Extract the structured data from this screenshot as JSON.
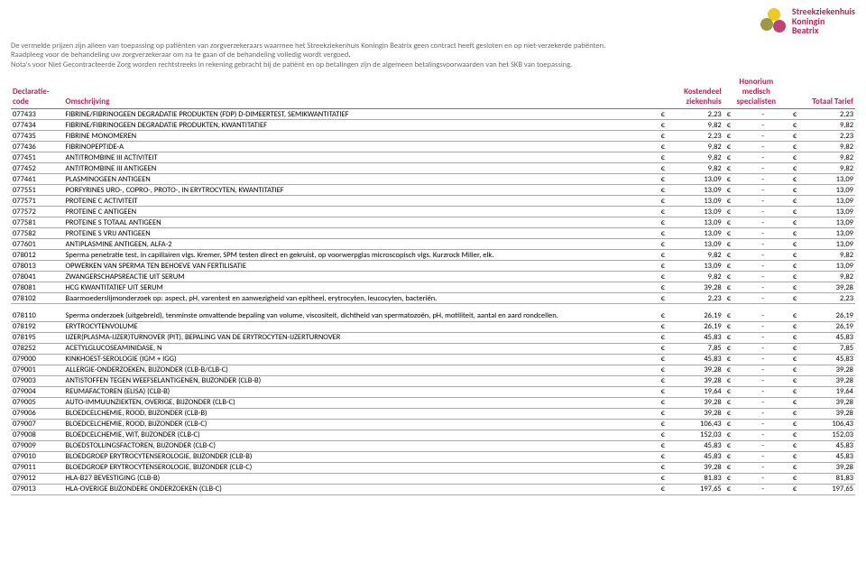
{
  "brand": {
    "name": "Streekziekenhuis\nKoningin\nBeatrix",
    "color": "#b3235d",
    "circle_colors": [
      "#e7c100",
      "#8a8a24",
      "#b3235d"
    ]
  },
  "disclaimer": {
    "line1": "De vermelde prijzen zijn alleen van toepassing op patiënten van zorgverzekeraars waarmee het Streekziekenhuis Koningin Beatrix geen contract heeft gesloten en op niet-verzekerde patiënten.",
    "line2": "Raadpleeg voor de behandeling uw zorgverzekeraar om na te gaan of de behandeling volledig wordt vergoed.",
    "line3": "Nota's voor Niet Gecontracteerde Zorg worden rechtstreeks in rekening gebracht bij de patiënt en op betalingen zijn de algemeen betalingsvoorwaarden van het SKB van toepassing."
  },
  "columns": {
    "code": "Declaratie-\ncode",
    "desc": "Omschrijving",
    "c1": "Kostendeel\nziekenhuis",
    "c2": "Honorium\nmedisch\nspecialisten",
    "c3": "Totaal Tarief"
  },
  "currency": "€",
  "rows": [
    [
      "077433",
      "FIBRINE/FIBRINOGEEN DEGRADATIE PRODUKTEN (FDP) D-DIMEERTEST, SEMIKWANTITATIEF",
      "2,23",
      "-",
      "2,23"
    ],
    [
      "077434",
      "FIBRINE/FIBRINOGEEN DEGRADATIE PRODUKTEN, KWANTITATIEF",
      "9,82",
      "-",
      "9,82"
    ],
    [
      "077435",
      "FIBRINE MONOMEREN",
      "2,23",
      "-",
      "2,23"
    ],
    [
      "077436",
      "FIBRINOPEPTIDE-A",
      "9,82",
      "-",
      "9,82"
    ],
    [
      "077451",
      "ANTITROMBINE III ACTIVITEIT",
      "9,82",
      "-",
      "9,82"
    ],
    [
      "077452",
      "ANTITROMBINE III ANTIGEEN",
      "9,82",
      "-",
      "9,82"
    ],
    [
      "077461",
      "PLASMINOGEEN ANTIGEEN",
      "13,09",
      "-",
      "13,09"
    ],
    [
      "077551",
      "PORFYRINES URO-, COPRO-, PROTO-, IN ERYTROCYTEN, KWANTITATIEF",
      "13,09",
      "-",
      "13,09"
    ],
    [
      "077571",
      "PROTEINE C ACTIVITEIT",
      "13,09",
      "-",
      "13,09"
    ],
    [
      "077572",
      "PROTEINE C ANTIGEEN",
      "13,09",
      "-",
      "13,09"
    ],
    [
      "077581",
      "PROTEINE S TOTAAL ANTIGEEN",
      "13,09",
      "-",
      "13,09"
    ],
    [
      "077582",
      "PROTEINE S VRIJ ANTIGEEN",
      "13,09",
      "-",
      "13,09"
    ],
    [
      "077601",
      "ANTIPLASMINE ANTIGEEN, ALFA-2",
      "13,09",
      "-",
      "13,09"
    ],
    [
      "078012",
      "Sperma penetratie test, in capillairen vlgs. Kremer, SPM testen direct en gekruist, op voorwerpglas microscopisch vlgs. Kurzrock Miller, elk.",
      "9,82",
      "-",
      "9,82"
    ],
    [
      "078013",
      "OPWERKEN VAN SPERMA TEN BEHOEVE VAN FERTILISATIE",
      "13,09",
      "-",
      "13,09"
    ],
    [
      "078041",
      "ZWANGERSCHAPSREACTIE UIT SERUM",
      "9,82",
      "-",
      "9,82"
    ],
    [
      "078081",
      "HCG KWANTITATIEF UIT SERUM",
      "39,28",
      "-",
      "39,28"
    ],
    [
      "078102",
      "Baarmoederslijmonderzoek op: aspect, pH, varentest en aanwezigheid van epitheel, erytrocyten, leucocyten, bacteriën.",
      "2,23",
      "-",
      "2,23"
    ],
    [
      "078110",
      "Sperma onderzoek (uitgebreid), tenminste omvattende bepaling van volume, viscositeit, dichtheid van spermatozoën, pH, motiliteit, aantal en aard rondcellen.",
      "26,19",
      "-",
      "26,19"
    ],
    [
      "078192",
      "ERYTROCYTENVOLUME",
      "26,19",
      "-",
      "26,19"
    ],
    [
      "078195",
      "IJZER(PLASMA-IJZER)TURNOVER (PIT), BEPALING VAN DE ERYTROCYTEN-IJZERTURNOVER",
      "45,83",
      "-",
      "45,83"
    ],
    [
      "078252",
      "ACETYLGLUCOSEAMINIDASE, N",
      "7,85",
      "-",
      "7,85"
    ],
    [
      "079000",
      "KINKHOEST-SEROLOGIE (IGM + IGG)",
      "45,83",
      "-",
      "45,83"
    ],
    [
      "079001",
      "ALLERGIE-ONDERZOEKEN, BIJZONDER (CLB-B/CLB-C)",
      "39,28",
      "-",
      "39,28"
    ],
    [
      "079003",
      "ANTISTOFFEN TEGEN WEEFSELANTIGENEN, BIJZONDER (CLB-B)",
      "39,28",
      "-",
      "39,28"
    ],
    [
      "079004",
      "REUMAFACTOREN (ELISA) (CLB-B)",
      "19,64",
      "-",
      "19,64"
    ],
    [
      "079005",
      "AUTO-IMMUUNZIEKTEN, OVERIGE, BIJZONDER (CLB-C)",
      "39,28",
      "-",
      "39,28"
    ],
    [
      "079006",
      "BLOEDCELCHEMIE, ROOD, BIJZONDER (CLB-B)",
      "39,28",
      "-",
      "39,28"
    ],
    [
      "079007",
      "BLOEDCELCHEMIE, ROOD, BIJZONDER (CLB-C)",
      "106,43",
      "-",
      "106,43"
    ],
    [
      "079008",
      "BLOEDCELCHEMIE, WIT, BIJZONDER (CLB-C)",
      "152,03",
      "-",
      "152,03"
    ],
    [
      "079009",
      "BLOEDSTOLLINGSFACTOREN, BIJZONDER (CLB-C)",
      "45,83",
      "-",
      "45,83"
    ],
    [
      "079010",
      "BLOEDGROEP ERYTROCYTENSEROLOGIE, BIJZONDER (CLB-B)",
      "45,83",
      "-",
      "45,83"
    ],
    [
      "079011",
      "BLOEDGROEP ERYTROCYTENSEROLOGIE, BIJZONDER (CLB-C)",
      "39,28",
      "-",
      "39,28"
    ],
    [
      "079012",
      "HLA-B27 BEVESTIGING (CLB-B)",
      "81,83",
      "-",
      "81,83"
    ],
    [
      "079013",
      "HLA-OVERIGE BIJZONDERE ONDERZOEKEN (CLB-C)",
      "197,65",
      "-",
      "197,65"
    ]
  ],
  "gap_after_index": 17
}
